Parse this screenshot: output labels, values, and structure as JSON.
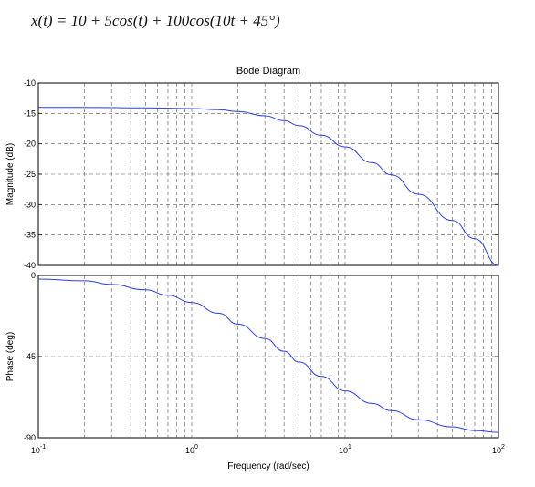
{
  "formula": "x(t) = 10 + 5cos(t) + 100cos(10t + 45°)",
  "chart_data": {
    "type": "line",
    "title": "Bode Diagram",
    "xlabel": "Frequency  (rad/sec)",
    "x_scale": "log",
    "xlim": [
      0.1,
      100
    ],
    "x_ticks": [
      {
        "base": "10",
        "exp": "-1"
      },
      {
        "base": "10",
        "exp": "0"
      },
      {
        "base": "10",
        "exp": "1"
      },
      {
        "base": "10",
        "exp": "2"
      }
    ],
    "grid": true,
    "line_color": "#2b3fe0",
    "panels": [
      {
        "name": "magnitude",
        "ylabel": "Magnitude (dB)",
        "ylim": [
          -40,
          -10
        ],
        "y_ticks": [
          "-10",
          "-15",
          "-20",
          "-25",
          "-30",
          "-35",
          "-40"
        ],
        "x": [
          0.1,
          0.2,
          0.5,
          1,
          1.5,
          2,
          3,
          4,
          5,
          7,
          10,
          15,
          20,
          30,
          50,
          70,
          100
        ],
        "y": [
          -14.0,
          -14.0,
          -14.1,
          -14.2,
          -14.4,
          -14.7,
          -15.4,
          -16.2,
          -17.0,
          -18.6,
          -20.5,
          -23.1,
          -25.1,
          -28.3,
          -32.6,
          -35.6,
          -40.0
        ]
      },
      {
        "name": "phase",
        "ylabel": "Phase (deg)",
        "ylim": [
          -90,
          0
        ],
        "y_ticks": [
          "0",
          "-45",
          "-90"
        ],
        "x": [
          0.1,
          0.2,
          0.3,
          0.5,
          0.7,
          1,
          1.5,
          2,
          3,
          4,
          5,
          7,
          10,
          15,
          20,
          30,
          50,
          70,
          100
        ],
        "y": [
          -2,
          -3,
          -5,
          -8,
          -11,
          -15,
          -21,
          -27,
          -35,
          -42,
          -48,
          -56,
          -64,
          -71,
          -75,
          -80,
          -84,
          -86,
          -87
        ]
      }
    ]
  }
}
